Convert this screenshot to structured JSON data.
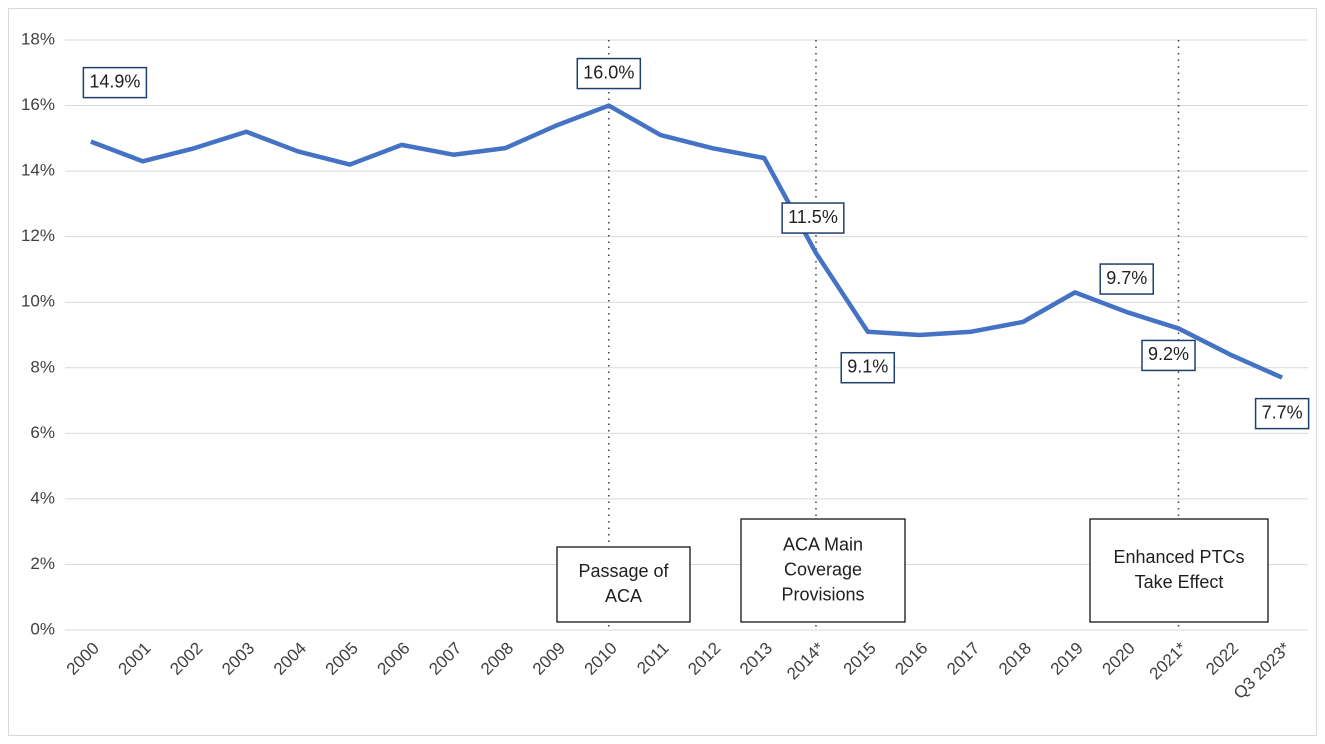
{
  "chart_data": {
    "type": "line",
    "categories": [
      "2000",
      "2001",
      "2002",
      "2003",
      "2004",
      "2005",
      "2006",
      "2007",
      "2008",
      "2009",
      "2010",
      "2011",
      "2012",
      "2013",
      "2014*",
      "2015",
      "2016",
      "2017",
      "2018",
      "2019",
      "2020",
      "2021*",
      "2022",
      "Q3 2023*"
    ],
    "series": [
      {
        "color": "#4472c4",
        "values": [
          14.9,
          14.3,
          14.7,
          15.2,
          14.6,
          14.2,
          14.8,
          14.5,
          14.7,
          15.4,
          16.0,
          15.1,
          14.7,
          14.4,
          11.5,
          9.1,
          9.0,
          9.1,
          9.4,
          10.3,
          9.7,
          9.2,
          8.4,
          7.7
        ],
        "value_labels": [
          "14.9%",
          null,
          null,
          null,
          null,
          null,
          null,
          null,
          null,
          null,
          "16.0%",
          null,
          null,
          null,
          "11.5%",
          "9.1%",
          null,
          null,
          null,
          null,
          "9.7%",
          "9.2%",
          null,
          "7.7%"
        ]
      }
    ],
    "ylim": [
      0,
      18
    ],
    "yticks": [
      {
        "value": 0,
        "label": "0%"
      },
      {
        "value": 2,
        "label": "2%"
      },
      {
        "value": 4,
        "label": "4%"
      },
      {
        "value": 6,
        "label": "6%"
      },
      {
        "value": 8,
        "label": "8%"
      },
      {
        "value": 10,
        "label": "10%"
      },
      {
        "value": 12,
        "label": "12%"
      },
      {
        "value": 14,
        "label": "14%"
      },
      {
        "value": 16,
        "label": "16%"
      },
      {
        "value": 18,
        "label": "18%"
      }
    ],
    "grid": true,
    "annotations": [
      {
        "x": "2010",
        "lines": [
          "Passage of",
          "ACA"
        ]
      },
      {
        "x": "2014*",
        "lines": [
          "ACA Main",
          "Coverage",
          "Provisions"
        ]
      },
      {
        "x": "2021*",
        "lines": [
          "Enhanced PTCs",
          "Take Effect"
        ]
      }
    ]
  }
}
